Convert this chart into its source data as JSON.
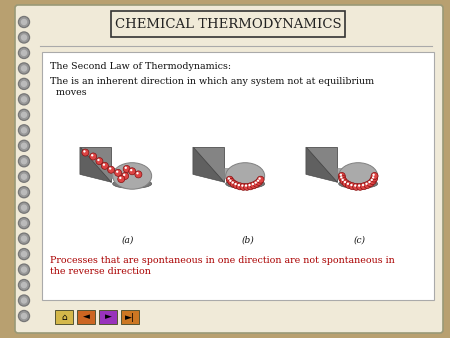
{
  "title": "CHEMICAL THERMODYNAMICS",
  "bg_outer": "#b8a070",
  "bg_page": "#f0ead8",
  "bg_content_box": "#ffffff",
  "title_box_color": "#f0ead8",
  "title_border_color": "#333333",
  "title_fontsize": 9.5,
  "title_color": "#222222",
  "line1": "The Second Law of Thermodynamics:",
  "line2a": "The is an inherent direction in which any system not at equilibrium",
  "line2b": " moves",
  "line3a": "Processes that are spontaneous in one direction are not spontaneous in",
  "line3b": "the reverse direction",
  "label_a": "(a)",
  "label_b": "(b)",
  "label_c": "(c)",
  "text_color_black": "#111111",
  "text_color_red": "#aa0000",
  "spiral_color": "#999999",
  "spiral_inner": "#bbbbbb",
  "spiral_wire": "#777777",
  "nav_colors": [
    "#d4b84a",
    "#cc6622",
    "#9933bb",
    "#cc7722"
  ],
  "line_separator_color": "#aaaaaa",
  "ramp_color": "#909090",
  "disk_color": "#aaaaaa",
  "disk_edge": "#707070",
  "ball_fill": "#dd4444",
  "ball_edge": "#881111"
}
